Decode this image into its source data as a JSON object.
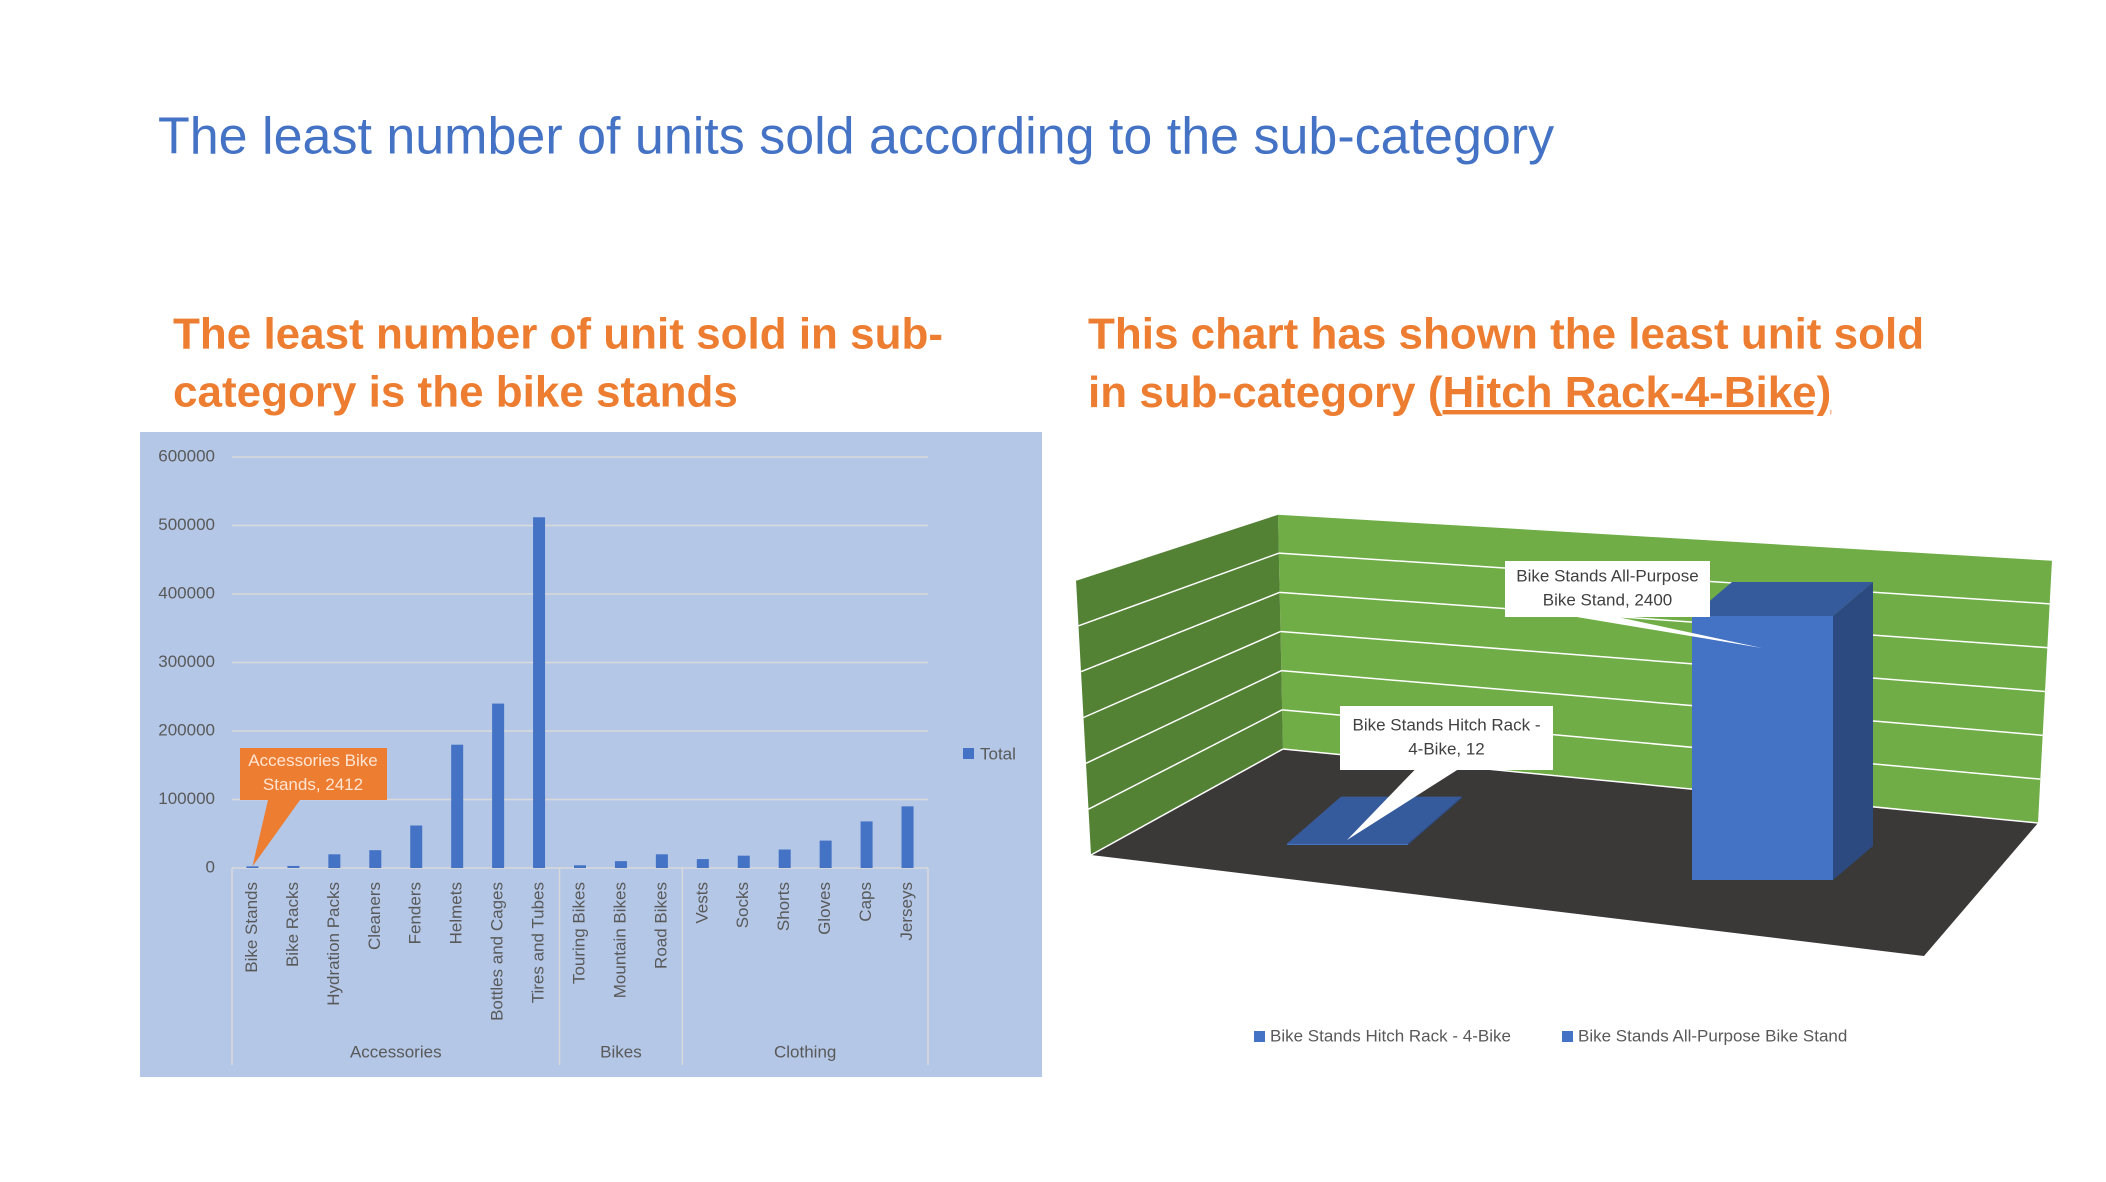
{
  "title": "The least number of units sold according to the sub-category",
  "left_heading": [
    "The least number of unit sold in sub-",
    "category is the bike stands"
  ],
  "right_heading": [
    "This chart has shown the least unit sold",
    "in sub-category (",
    "Hitch Rack-4-Bike)"
  ],
  "chart_data": [
    {
      "type": "bar",
      "categories": [
        "Bike Stands",
        "Bike Racks",
        "Hydration Packs",
        "Cleaners",
        "Fenders",
        "Helmets",
        "Bottles and Cages",
        "Tires and Tubes",
        "Touring Bikes",
        "Mountain Bikes",
        "Road Bikes",
        "Vests",
        "Socks",
        "Shorts",
        "Gloves",
        "Caps",
        "Jerseys"
      ],
      "category_groups": [
        {
          "name": "Accessories",
          "size": 8
        },
        {
          "name": "Bikes",
          "size": 3
        },
        {
          "name": "Clothing",
          "size": 6
        }
      ],
      "series": [
        {
          "name": "Total",
          "color": "#4472c4",
          "values": [
            2412,
            3000,
            20000,
            26000,
            62000,
            180000,
            240000,
            512000,
            4000,
            10000,
            20000,
            13000,
            18000,
            27000,
            40000,
            68000,
            90000
          ]
        }
      ],
      "annotation": "Accessories Bike Stands, 2412",
      "ylim": [
        0,
        600000
      ],
      "yticks": [
        0,
        100000,
        200000,
        300000,
        400000,
        500000,
        600000
      ],
      "grid": true,
      "legend": "right"
    },
    {
      "type": "bar3d",
      "series": [
        {
          "name": "Bike Stands Hitch Rack - 4-Bike",
          "color": "#4472c4",
          "values": [
            12
          ],
          "value_labels": [
            "Bike Stands Hitch Rack -",
            "4-Bike, 12"
          ]
        },
        {
          "name": "Bike Stands All-Purpose Bike Stand",
          "color": "#4472c4",
          "values": [
            2400
          ],
          "value_labels": [
            "Bike Stands All-Purpose",
            "Bike Stand, 2400"
          ]
        }
      ],
      "ylim": [
        0,
        3000
      ],
      "yticks": [
        0,
        500,
        1000,
        1500,
        2000,
        2500,
        3000
      ],
      "grid": true,
      "legend": "bottom"
    }
  ]
}
